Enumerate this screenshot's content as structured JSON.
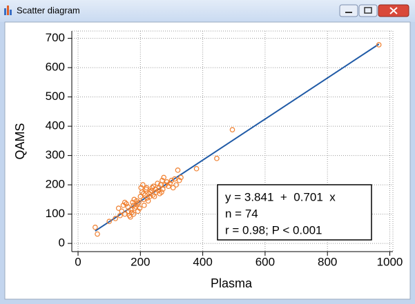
{
  "window": {
    "title": "Scatter diagram"
  },
  "chart_data": {
    "type": "scatter",
    "x_label": "Plasma",
    "y_label": "QAMS",
    "x": [
      55,
      62,
      100,
      120,
      130,
      135,
      140,
      145,
      150,
      155,
      160,
      162,
      165,
      168,
      170,
      172,
      175,
      178,
      180,
      182,
      185,
      188,
      190,
      192,
      195,
      198,
      200,
      202,
      205,
      208,
      210,
      212,
      215,
      218,
      220,
      222,
      225,
      228,
      230,
      232,
      235,
      238,
      240,
      242,
      245,
      248,
      250,
      255,
      258,
      260,
      265,
      268,
      270,
      272,
      275,
      280,
      285,
      290,
      295,
      300,
      305,
      310,
      315,
      320,
      325,
      330,
      380,
      445,
      495,
      965,
      150,
      178,
      210,
      262
    ],
    "values": [
      55,
      32,
      75,
      85,
      120,
      95,
      110,
      130,
      100,
      135,
      125,
      110,
      95,
      90,
      115,
      105,
      140,
      130,
      150,
      120,
      125,
      145,
      135,
      110,
      140,
      120,
      160,
      190,
      175,
      200,
      150,
      130,
      165,
      185,
      190,
      155,
      145,
      170,
      160,
      175,
      180,
      190,
      165,
      195,
      160,
      185,
      175,
      205,
      180,
      190,
      200,
      175,
      215,
      185,
      225,
      200,
      210,
      195,
      205,
      215,
      190,
      220,
      200,
      250,
      215,
      225,
      255,
      290,
      388,
      678,
      140,
      100,
      170,
      170
    ],
    "color": "#f07f2e",
    "regression": {
      "intercept": 3.841,
      "slope": 0.701,
      "color": "#1f5aa6"
    },
    "annotations": [
      "y = 3.841  +  0.701  x",
      "n = 74",
      "r = 0.98; P < 0.001"
    ],
    "xlim": [
      -20,
      1010
    ],
    "ylim": [
      -28,
      725
    ],
    "xticks": [
      0,
      200,
      400,
      600,
      800,
      1000
    ],
    "yticks": [
      0,
      100,
      200,
      300,
      400,
      500,
      600,
      700
    ],
    "grid": true
  }
}
